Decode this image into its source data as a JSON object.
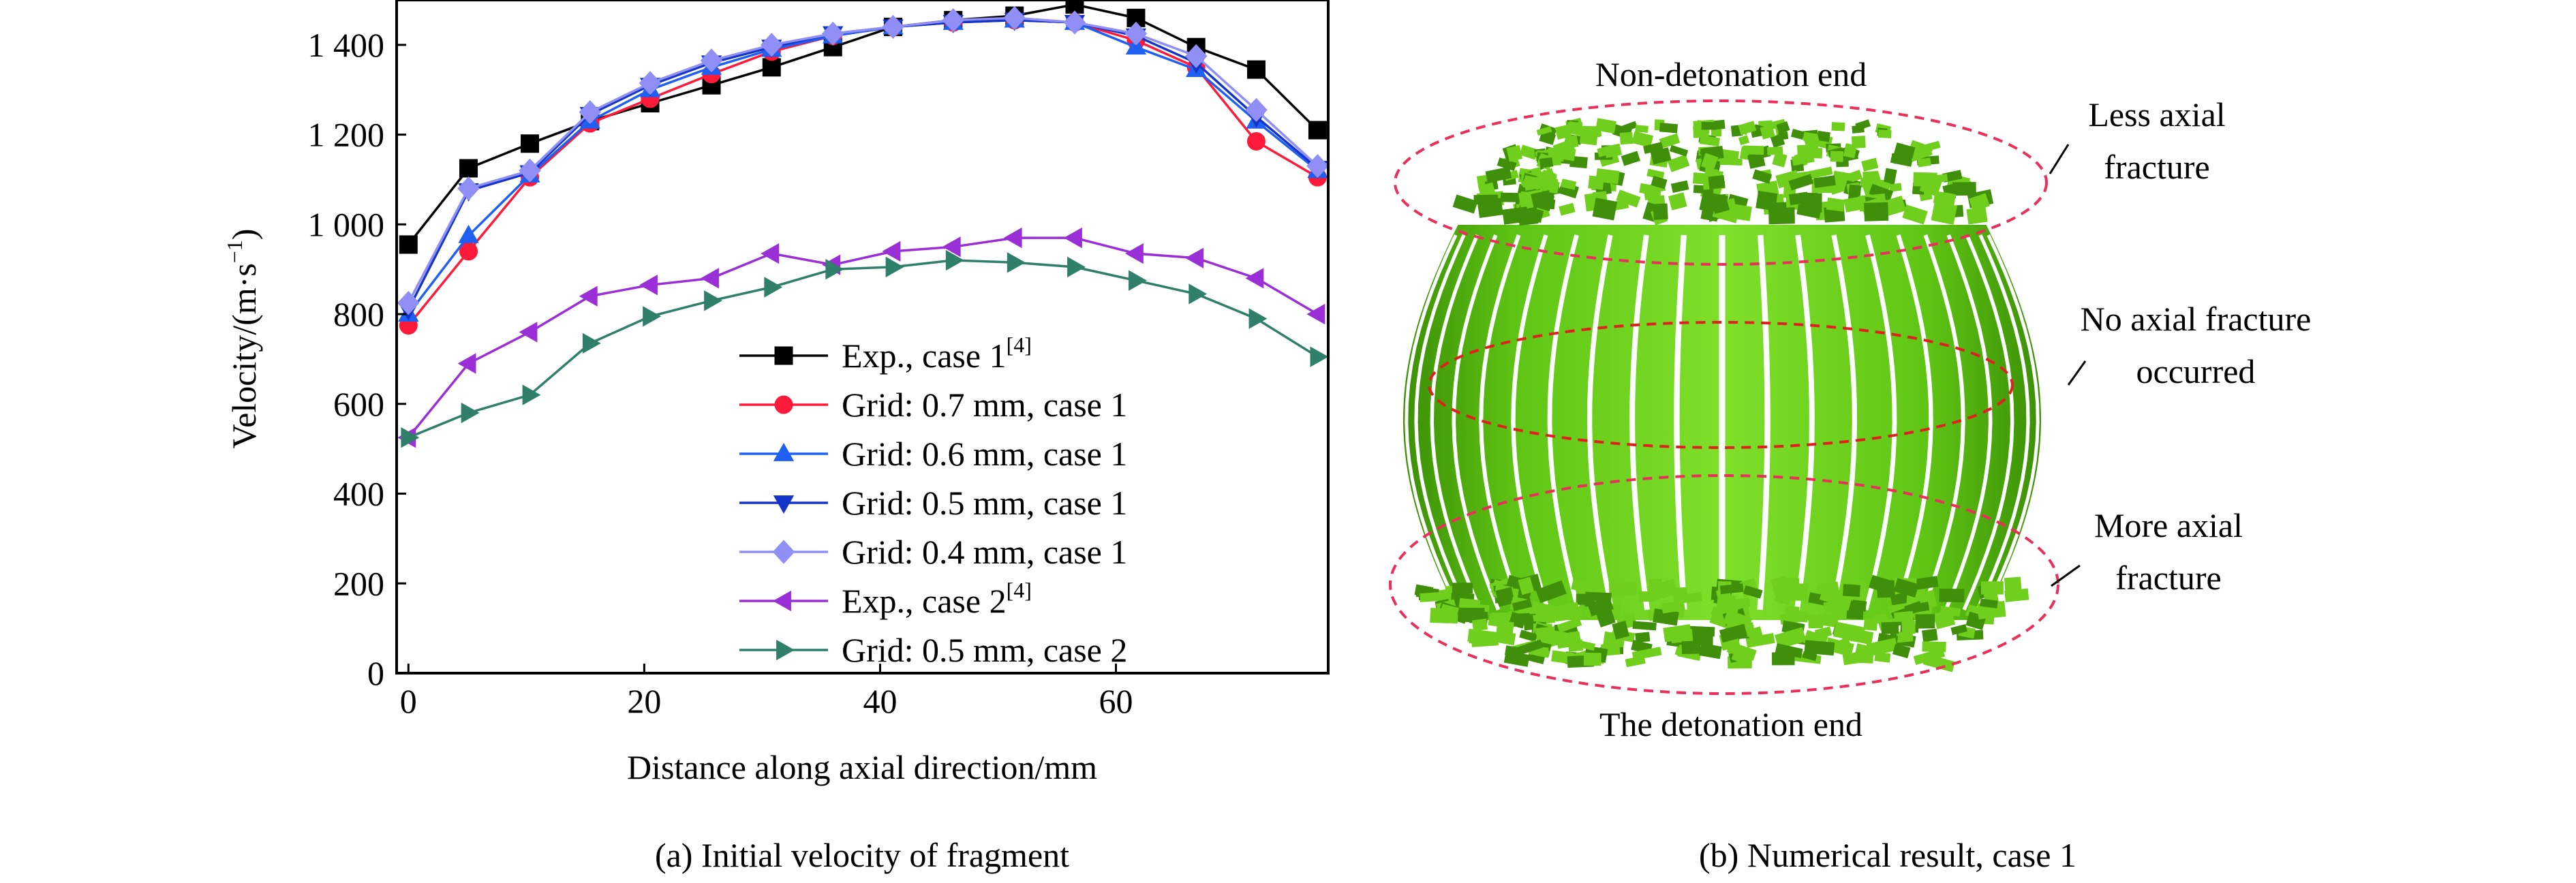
{
  "chart_data": {
    "type": "line",
    "xlabel": "Distance along axial direction/mm",
    "ylabel_main": "Velocity/(m·s",
    "ylabel_sup": "−1",
    "ylabel_end": ")",
    "xlim": [
      -1,
      78
    ],
    "ylim": [
      0,
      1500
    ],
    "xticks": [
      0,
      20,
      40,
      60
    ],
    "xtick_labels": [
      "0",
      "20",
      "40",
      "60"
    ],
    "yticks": [
      0,
      200,
      400,
      600,
      800,
      1000,
      1200,
      1400
    ],
    "ytick_labels": [
      "0",
      "200",
      "400",
      "600",
      "800",
      "1 000",
      "1 200",
      "1 400"
    ],
    "grid": false,
    "legend_position": "lower-right",
    "x": [
      0,
      5.1,
      10.3,
      15.4,
      20.5,
      25.7,
      30.8,
      36,
      41.1,
      46.2,
      51.4,
      56.5,
      61.7,
      66.8,
      71.9,
      77.1
    ],
    "series": [
      {
        "name": "Exp., case 1",
        "ref": "[4]",
        "color": "#000000",
        "marker": "square",
        "values": [
          955,
          1125,
          1180,
          1230,
          1270,
          1310,
          1350,
          1395,
          1440,
          1455,
          1465,
          1490,
          1460,
          1395,
          1345,
          1210
        ]
      },
      {
        "name": "Grid: 0.7 mm, case 1",
        "ref": "",
        "color": "#ff1a3a",
        "marker": "circle",
        "values": [
          775,
          940,
          1105,
          1225,
          1280,
          1335,
          1385,
          1420,
          1440,
          1450,
          1455,
          1450,
          1410,
          1350,
          1185,
          1105
        ]
      },
      {
        "name": "Grid: 0.6 mm, case 1",
        "ref": "",
        "color": "#1f5ff2",
        "marker": "triangle-up",
        "values": [
          800,
          975,
          1110,
          1230,
          1300,
          1350,
          1390,
          1420,
          1440,
          1450,
          1455,
          1450,
          1395,
          1345,
          1230,
          1120
        ]
      },
      {
        "name": "Grid: 0.5 mm, case 1",
        "ref": "",
        "color": "#1535c8",
        "marker": "triangle-down",
        "values": [
          810,
          1075,
          1115,
          1245,
          1310,
          1360,
          1395,
          1425,
          1440,
          1450,
          1455,
          1450,
          1420,
          1360,
          1240,
          1125
        ]
      },
      {
        "name": "Grid: 0.4 mm, case 1",
        "ref": "",
        "color": "#8f8ff5",
        "marker": "diamond",
        "values": [
          825,
          1080,
          1120,
          1250,
          1315,
          1365,
          1400,
          1425,
          1440,
          1455,
          1460,
          1450,
          1425,
          1375,
          1255,
          1130
        ]
      },
      {
        "name": "Exp., case 2",
        "ref": "[4]",
        "color": "#9a2fd8",
        "marker": "triangle-left",
        "values": [
          525,
          690,
          760,
          840,
          865,
          880,
          935,
          910,
          940,
          950,
          970,
          970,
          935,
          925,
          880,
          800
        ]
      },
      {
        "name": "Grid: 0.5 mm, case 2",
        "ref": "",
        "color": "#2f7f6a",
        "marker": "triangle-right",
        "values": [
          525,
          580,
          620,
          735,
          795,
          830,
          860,
          900,
          905,
          920,
          915,
          905,
          875,
          845,
          790,
          705
        ]
      }
    ]
  },
  "caption_a": "(a) Initial velocity of fragment",
  "caption_b": "(b) Numerical result, case 1",
  "annotations": {
    "top": "Non-detonation end",
    "bottom": "The detonation end",
    "less_1": "Less axial",
    "less_2": "fracture",
    "no_1": "No axial fracture",
    "no_2": "occurred",
    "more_1": "More axial",
    "more_2": "fracture"
  },
  "colors": {
    "fragment_fill": "#6fcf1c",
    "fragment_dark": "#3f8f0a",
    "ellipse_stroke": "#e8305a",
    "dash_stroke": "#e02020"
  }
}
